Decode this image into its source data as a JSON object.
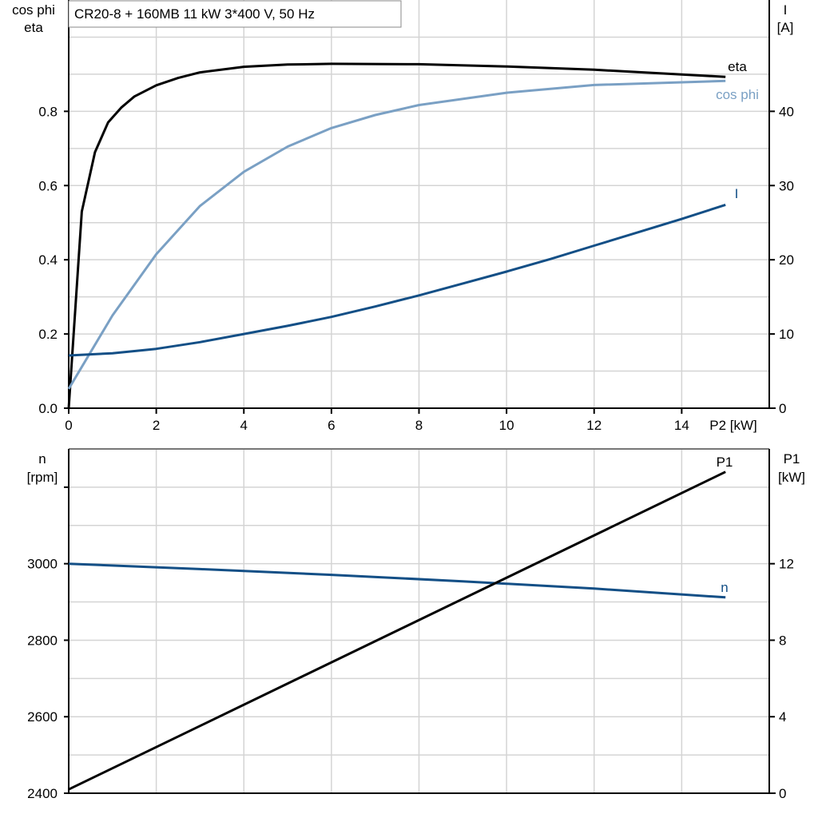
{
  "colors": {
    "eta": "#000000",
    "cos_phi": "#7aa0c4",
    "I": "#134f86",
    "n": "#134f86",
    "P1": "#000000",
    "grid": "#d4d4d4"
  },
  "chart_data": [
    {
      "type": "line",
      "title": "CR20-8 + 160MB   11 kW   3*400 V, 50 Hz",
      "xlabel": "P2 [kW]",
      "ylabel_left": [
        "cos phi",
        "eta"
      ],
      "ylabel_right": [
        "I",
        "[A]"
      ],
      "xlim": [
        0,
        16
      ],
      "ylim_left": [
        0,
        1.1
      ],
      "ylim_right": [
        0,
        55
      ],
      "grid": true,
      "xticks": [
        0,
        2,
        4,
        6,
        8,
        10,
        12,
        14
      ],
      "yticks_left": [
        "0.0",
        "0.2",
        "0.4",
        "0.6",
        "0.8"
      ],
      "yticks_right": [
        "0",
        "10",
        "20",
        "30",
        "40"
      ],
      "series": [
        {
          "name": "eta",
          "axis": "left",
          "x": [
            0,
            0.3,
            0.6,
            0.9,
            1.2,
            1.5,
            2,
            2.5,
            3,
            4,
            5,
            6,
            8,
            10,
            12,
            15
          ],
          "y": [
            0,
            0.53,
            0.69,
            0.77,
            0.81,
            0.84,
            0.87,
            0.89,
            0.905,
            0.92,
            0.926,
            0.928,
            0.927,
            0.921,
            0.912,
            0.893
          ]
        },
        {
          "name": "cos phi",
          "axis": "left",
          "x": [
            0,
            1,
            2,
            3,
            4,
            5,
            6,
            7,
            8,
            10,
            12,
            15
          ],
          "y": [
            0.052,
            0.25,
            0.415,
            0.545,
            0.637,
            0.705,
            0.755,
            0.79,
            0.817,
            0.85,
            0.871,
            0.882
          ]
        },
        {
          "name": "I",
          "axis": "right",
          "x": [
            0,
            1,
            2,
            3,
            4,
            5,
            6,
            7,
            8,
            9,
            10,
            11,
            12,
            13,
            14,
            15
          ],
          "y": [
            7.1,
            7.4,
            8.0,
            8.9,
            10.0,
            11.1,
            12.3,
            13.7,
            15.2,
            16.8,
            18.4,
            20.1,
            21.9,
            23.7,
            25.5,
            27.4
          ]
        }
      ]
    },
    {
      "type": "line",
      "xlabel": "",
      "ylabel_left": [
        "n",
        "[rpm]"
      ],
      "ylabel_right": [
        "P1",
        "[kW]"
      ],
      "xlim": [
        0,
        16
      ],
      "ylim_left": [
        2400,
        3300
      ],
      "ylim_right": [
        0,
        18
      ],
      "grid": true,
      "yticks_left": [
        "2400",
        "2600",
        "2800",
        "3000"
      ],
      "yticks_right": [
        "0",
        "4",
        "8",
        "12"
      ],
      "series": [
        {
          "name": "n",
          "axis": "left",
          "x": [
            0,
            3,
            6,
            9,
            12,
            15
          ],
          "y": [
            3000,
            2986,
            2971,
            2954,
            2935,
            2912
          ]
        },
        {
          "name": "P1",
          "axis": "right",
          "x": [
            0,
            15
          ],
          "y": [
            0.2,
            16.8
          ]
        }
      ]
    }
  ]
}
